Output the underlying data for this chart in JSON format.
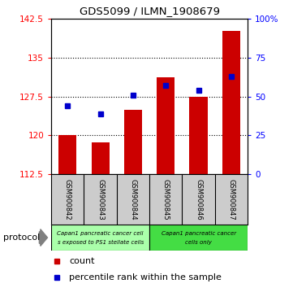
{
  "title": "GDS5099 / ILMN_1908679",
  "samples": [
    "GSM900842",
    "GSM900843",
    "GSM900844",
    "GSM900845",
    "GSM900846",
    "GSM900847"
  ],
  "counts": [
    120.1,
    118.6,
    125.0,
    131.2,
    127.5,
    140.2
  ],
  "percentile_ranks": [
    44,
    39,
    51,
    57,
    54,
    63
  ],
  "ylim_left": [
    112.5,
    142.5
  ],
  "ylim_right": [
    0,
    100
  ],
  "yticks_left": [
    112.5,
    120.0,
    127.5,
    135.0,
    142.5
  ],
  "yticks_right": [
    0,
    25,
    50,
    75,
    100
  ],
  "ytick_labels_left": [
    "112.5",
    "120",
    "127.5",
    "135",
    "142.5"
  ],
  "ytick_labels_right": [
    "0",
    "25",
    "50",
    "75",
    "100%"
  ],
  "bar_color": "#cc0000",
  "marker_color": "#0000cc",
  "bar_bottom": 112.5,
  "group1_color": "#aaffaa",
  "group2_color": "#44dd44",
  "group1_label_line1": "Capan1 pancreatic cancer cell",
  "group1_label_line2": "s exposed to PS1 stellate cells",
  "group2_label_line1": "Capan1 pancreatic cancer",
  "group2_label_line2": "cells only",
  "legend_count_label": "count",
  "legend_percentile_label": "percentile rank within the sample",
  "protocol_label": "protocol"
}
